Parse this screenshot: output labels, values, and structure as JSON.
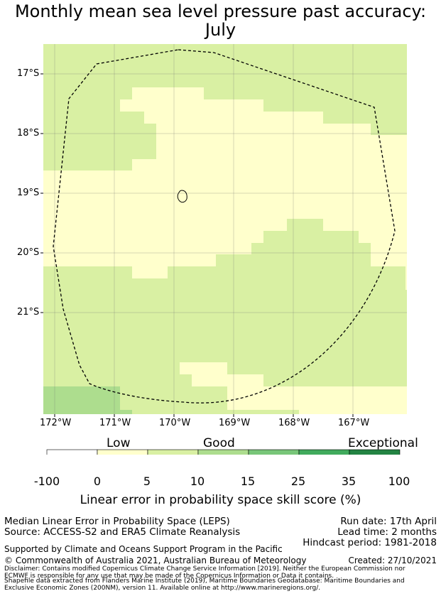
{
  "title_line1": "Monthly mean sea level pressure past accuracy:",
  "title_line2": "July",
  "lat_labels": [
    "17°S",
    "18°S",
    "19°S",
    "20°S",
    "21°S"
  ],
  "lon_labels": [
    "172°W",
    "171°W",
    "170°W",
    "169°W",
    "168°W",
    "167°W"
  ],
  "categories": [
    "Low",
    "Good",
    "Exceptional"
  ],
  "colorbar": {
    "ticks": [
      "-100",
      "0",
      "5",
      "10",
      "15",
      "25",
      "35",
      "100"
    ],
    "colors": [
      "#ffffff",
      "#ffffcc",
      "#d9f0a3",
      "#addd8e",
      "#78c679",
      "#41ab5d",
      "#238443"
    ],
    "label": "Linear error in probability space skill score (%)"
  },
  "info": {
    "method": "Median Linear Error in Probability Space (LEPS)",
    "source": "Source: ACCESS-S2 and ERA5 Climate Reanalysis",
    "run_date": "Run date: 17th April",
    "lead_time": "Lead time: 2 months",
    "hindcast": "Hindcast period: 1981-2018",
    "supported": "Supported by Climate and Oceans Support Program in the Pacific",
    "copyright": "© Commonwealth of Australia 2021, Australian Bureau of Meteorology",
    "created": "Created: 27/10/2021",
    "disclaimer": "Disclaimer: Contains modified Copernicus Climate Change Service Information [2019]. Neither the European Commission nor ECMWF is responsible for any use that may be made of the Copernicus Information or Data it contains.",
    "shapefile": "Shapefile data extracted from Flanders Marine Institute (2019), Maritime Boundaries Geodatabase: Maritime Boundaries and Exclusive Economic Zones (200NM), version 11. Available online at http://www.marineregions.org/."
  }
}
